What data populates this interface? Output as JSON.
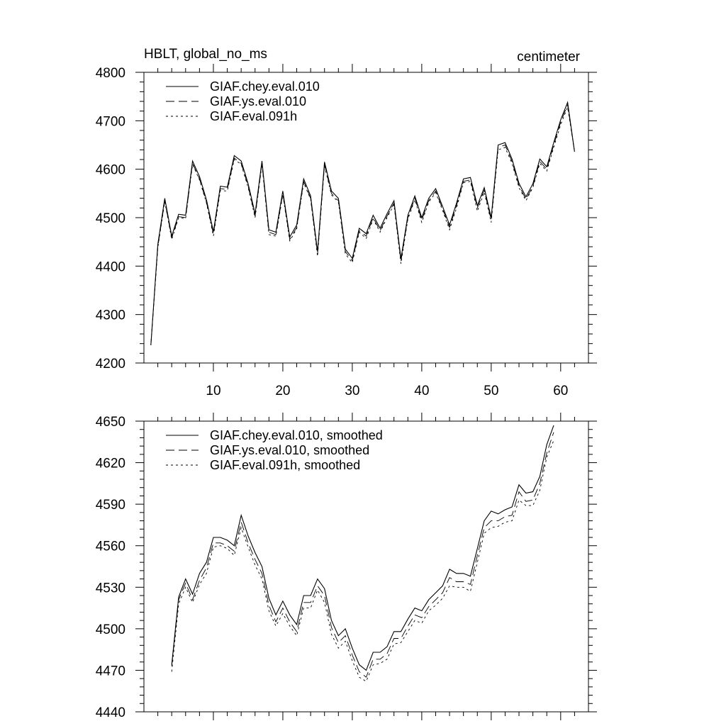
{
  "title_left": "HBLT, global_no_ms",
  "title_right": "centimeter",
  "chart_data": [
    {
      "type": "line",
      "title": "HBLT, global_no_ms",
      "units": "centimeter",
      "xlim": [
        0,
        64
      ],
      "ylim": [
        4200,
        4800
      ],
      "xticks": [
        10,
        20,
        30,
        40,
        50,
        60
      ],
      "yticks": [
        4200,
        4300,
        4400,
        4500,
        4600,
        4700,
        4800
      ],
      "x_start": 1,
      "series": [
        {
          "name": "GIAF.chey.eval.010",
          "style": "solid",
          "values": [
            4237,
            4445,
            4540,
            4462,
            4507,
            4505,
            4617,
            4585,
            4537,
            4471,
            4565,
            4563,
            4628,
            4617,
            4570,
            4508,
            4617,
            4475,
            4470,
            4555,
            4460,
            4485,
            4580,
            4545,
            4430,
            4615,
            4555,
            4540,
            4435,
            4416,
            4478,
            4467,
            4505,
            4478,
            4508,
            4535,
            4415,
            4505,
            4545,
            4500,
            4540,
            4560,
            4523,
            4485,
            4530,
            4580,
            4583,
            4525,
            4562,
            4500,
            4650,
            4655,
            4621,
            4571,
            4543,
            4570,
            4621,
            4605,
            4655,
            4702,
            4738,
            4636
          ]
        },
        {
          "name": "GIAF.ys.eval.010",
          "style": "dashed",
          "values": [
            4237,
            4440,
            4535,
            4458,
            4502,
            4500,
            4612,
            4580,
            4532,
            4466,
            4560,
            4558,
            4623,
            4612,
            4565,
            4503,
            4612,
            4470,
            4465,
            4550,
            4455,
            4480,
            4575,
            4540,
            4425,
            4610,
            4550,
            4535,
            4430,
            4411,
            4473,
            4462,
            4500,
            4473,
            4503,
            4530,
            4410,
            4500,
            4540,
            4495,
            4535,
            4555,
            4518,
            4480,
            4525,
            4575,
            4578,
            4520,
            4557,
            4495,
            4645,
            4650,
            4616,
            4566,
            4538,
            4565,
            4616,
            4600,
            4650,
            4697,
            4733,
            4636
          ]
        },
        {
          "name": "GIAF.eval.091h",
          "style": "dotted",
          "values": [
            4237,
            4438,
            4533,
            4455,
            4500,
            4498,
            4610,
            4578,
            4530,
            4462,
            4556,
            4555,
            4620,
            4610,
            4562,
            4500,
            4610,
            4465,
            4462,
            4547,
            4452,
            4477,
            4572,
            4538,
            4420,
            4607,
            4547,
            4532,
            4425,
            4407,
            4470,
            4457,
            4497,
            4470,
            4500,
            4527,
            4405,
            4497,
            4537,
            4490,
            4532,
            4552,
            4515,
            4475,
            4520,
            4572,
            4575,
            4513,
            4553,
            4490,
            4640,
            4645,
            4612,
            4562,
            4535,
            4562,
            4612,
            4596,
            4645,
            4692,
            4728,
            4636
          ]
        }
      ]
    },
    {
      "type": "line",
      "xlim": [
        0,
        64
      ],
      "ylim": [
        4440,
        4650
      ],
      "xticks": [
        10,
        20,
        30,
        40,
        50,
        60
      ],
      "yticks": [
        4440,
        4470,
        4500,
        4530,
        4560,
        4590,
        4620,
        4650
      ],
      "x_start": 4,
      "series": [
        {
          "name": "GIAF.chey.eval.010, smoothed",
          "style": "solid",
          "values": [
            4474,
            4523,
            4536,
            4525,
            4540,
            4548,
            4566,
            4566,
            4564,
            4560,
            4582,
            4567,
            4555,
            4545,
            4522,
            4510,
            4520,
            4510,
            4503,
            4524,
            4524,
            4536,
            4529,
            4506,
            4495,
            4500,
            4486,
            4474,
            4470,
            4483,
            4483,
            4487,
            4498,
            4498,
            4507,
            4515,
            4513,
            4521,
            4526,
            4531,
            4543,
            4540,
            4540,
            4538,
            4558,
            4578,
            4585,
            4583,
            4586,
            4588,
            4604,
            4598,
            4599,
            4610,
            4633,
            4647
          ]
        },
        {
          "name": "GIAF.ys.eval.010, smoothed",
          "style": "dashed",
          "values": [
            4473,
            4521,
            4533,
            4521,
            4535,
            4544,
            4562,
            4562,
            4560,
            4556,
            4577,
            4562,
            4550,
            4540,
            4517,
            4505,
            4515,
            4505,
            4498,
            4519,
            4519,
            4531,
            4524,
            4501,
            4490,
            4495,
            4481,
            4469,
            4465,
            4478,
            4478,
            4482,
            4493,
            4493,
            4502,
            4510,
            4508,
            4516,
            4521,
            4526,
            4537,
            4534,
            4534,
            4532,
            4553,
            4573,
            4578,
            4578,
            4581,
            4582,
            4599,
            4592,
            4593,
            4605,
            4627,
            4642
          ]
        },
        {
          "name": "GIAF.eval.091h, smoothed",
          "style": "dotted",
          "values": [
            4469,
            4518,
            4530,
            4519,
            4532,
            4540,
            4559,
            4560,
            4558,
            4553,
            4573,
            4559,
            4546,
            4536,
            4513,
            4502,
            4511,
            4502,
            4495,
            4515,
            4515,
            4528,
            4519,
            4496,
            4486,
            4491,
            4477,
            4465,
            4462,
            4474,
            4475,
            4478,
            4489,
            4490,
            4498,
            4506,
            4504,
            4513,
            4517,
            4522,
            4531,
            4530,
            4530,
            4527,
            4548,
            4569,
            4573,
            4574,
            4577,
            4578,
            4593,
            4589,
            4589,
            4600,
            4624,
            4636
          ]
        }
      ]
    }
  ]
}
